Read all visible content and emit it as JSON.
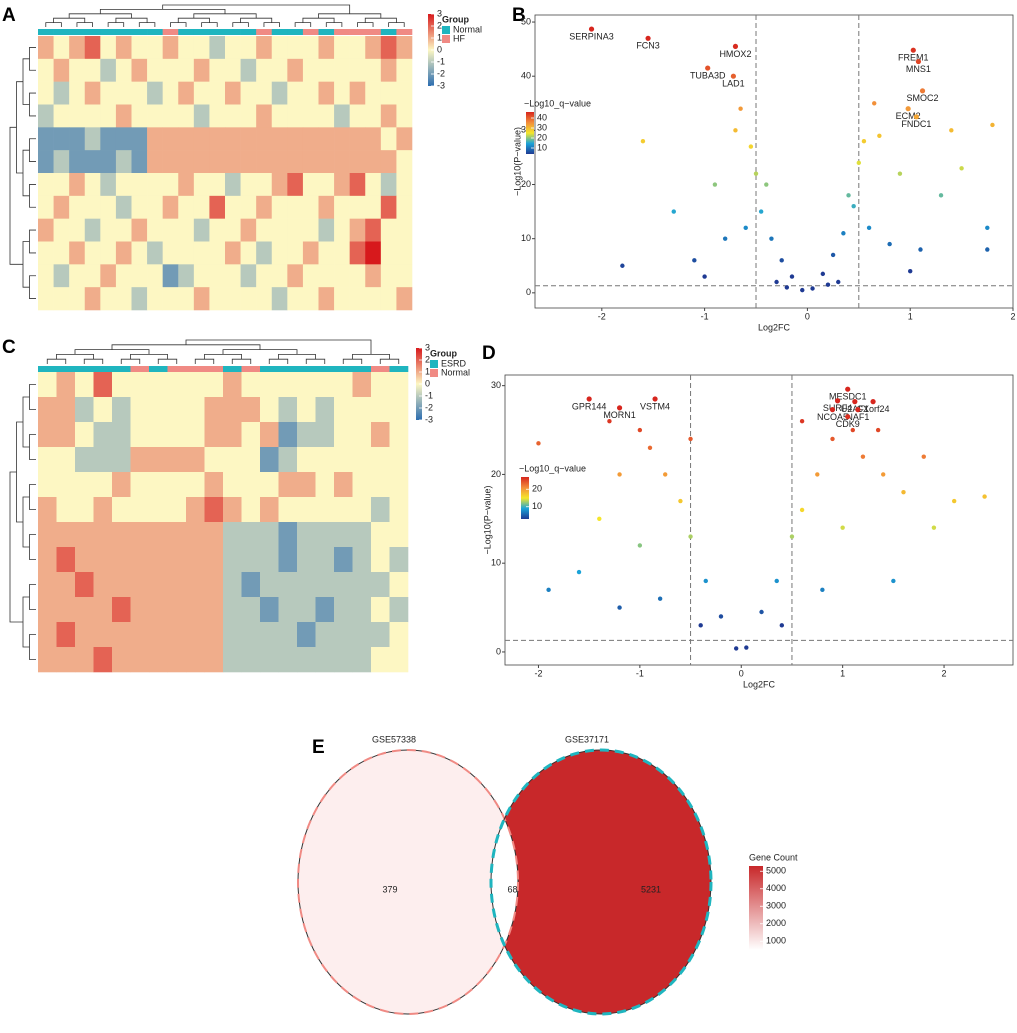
{
  "chart_data": [
    {
      "type": "heatmap",
      "panel": "A",
      "legend_title": "Group",
      "groups": [
        {
          "name": "Normal",
          "color": "#1fb5bf"
        },
        {
          "name": "HF",
          "color": "#f08a84"
        }
      ],
      "column_groups": [
        "Normal",
        "Normal",
        "Normal",
        "Normal",
        "Normal",
        "Normal",
        "Normal",
        "Normal",
        "HF",
        "Normal",
        "Normal",
        "Normal",
        "Normal",
        "Normal",
        "HF",
        "Normal",
        "Normal",
        "HF",
        "Normal",
        "HF",
        "HF",
        "HF",
        "Normal",
        "HF"
      ],
      "values": [
        [
          1,
          0,
          1,
          2,
          0,
          1,
          0,
          0,
          1,
          0,
          0,
          -1,
          0,
          0,
          1,
          0,
          0,
          0,
          1,
          0,
          0,
          1,
          2,
          1
        ],
        [
          0,
          1,
          0,
          0,
          -1,
          0,
          1,
          0,
          0,
          0,
          1,
          0,
          0,
          -1,
          0,
          0,
          1,
          0,
          0,
          0,
          0,
          0,
          1,
          0
        ],
        [
          0,
          -1,
          0,
          1,
          0,
          0,
          0,
          -1,
          0,
          1,
          0,
          0,
          1,
          0,
          0,
          -1,
          0,
          0,
          1,
          0,
          1,
          0,
          0,
          0
        ],
        [
          -1,
          0,
          0,
          0,
          0,
          1,
          0,
          0,
          0,
          0,
          -1,
          0,
          0,
          0,
          1,
          0,
          0,
          0,
          0,
          -1,
          0,
          0,
          1,
          0
        ],
        [
          -2,
          -2,
          -2,
          -1,
          -2,
          -2,
          -2,
          1,
          1,
          1,
          1,
          1,
          1,
          1,
          1,
          1,
          1,
          1,
          1,
          1,
          1,
          1,
          0,
          1
        ],
        [
          -2,
          -1,
          -2,
          -2,
          -2,
          -1,
          -2,
          1,
          1,
          1,
          1,
          1,
          1,
          1,
          1,
          1,
          1,
          1,
          1,
          1,
          1,
          1,
          1,
          0
        ],
        [
          0,
          0,
          1,
          0,
          -1,
          0,
          0,
          0,
          0,
          1,
          0,
          0,
          -1,
          0,
          0,
          1,
          2,
          0,
          0,
          1,
          2,
          0,
          -1,
          0
        ],
        [
          0,
          1,
          0,
          0,
          0,
          -1,
          0,
          0,
          1,
          0,
          0,
          2,
          0,
          0,
          1,
          0,
          0,
          0,
          1,
          0,
          0,
          0,
          2,
          0
        ],
        [
          1,
          0,
          0,
          -1,
          0,
          0,
          1,
          0,
          0,
          0,
          -1,
          0,
          0,
          1,
          0,
          0,
          0,
          0,
          -1,
          0,
          1,
          2,
          0,
          0
        ],
        [
          0,
          0,
          1,
          0,
          0,
          1,
          0,
          -1,
          0,
          0,
          0,
          0,
          1,
          0,
          -1,
          0,
          0,
          1,
          0,
          0,
          2,
          3,
          0,
          0
        ],
        [
          0,
          -1,
          0,
          0,
          1,
          0,
          0,
          0,
          -2,
          -1,
          0,
          0,
          0,
          -1,
          0,
          0,
          1,
          0,
          0,
          0,
          0,
          1,
          0,
          0
        ],
        [
          0,
          0,
          0,
          1,
          0,
          0,
          -1,
          0,
          0,
          0,
          1,
          0,
          0,
          0,
          0,
          -1,
          0,
          0,
          1,
          0,
          0,
          0,
          0,
          1
        ]
      ],
      "color_scale": {
        "lim": [
          -3,
          3
        ],
        "colors": [
          "#2c6db0",
          "#fdf7c3",
          "#d7191c"
        ]
      },
      "colorbar_ticks": [
        3,
        2,
        1,
        0,
        -1,
        -2,
        -3
      ]
    },
    {
      "type": "scatter",
      "panel": "B",
      "xlabel": "Log2FC",
      "ylabel": "−Log10(P−value)",
      "xlim": [
        -2.65,
        2
      ],
      "ylim": [
        -2.8,
        51.3
      ],
      "xticks": [
        -2,
        -1,
        0,
        1,
        2
      ],
      "yticks": [
        0,
        10,
        20,
        30,
        40,
        50
      ],
      "thresholds": {
        "x": [
          -0.5,
          0.5
        ],
        "y": [
          1.3
        ]
      },
      "x": [
        -0.05,
        0.05,
        -0.15,
        0.15,
        -0.25,
        0.25,
        -0.35,
        0.35,
        -0.45,
        0.45,
        -0.5,
        0.5,
        -0.55,
        0.55,
        -0.6,
        0.6,
        -0.8,
        0.8,
        -0.9,
        0.9,
        -1.1,
        1.1,
        -1.3,
        1.3,
        -1.6,
        1.4,
        -1.8,
        1.5,
        1.75,
        1.75,
        -0.3,
        0.3,
        -0.7,
        0.7,
        -0.4,
        0.4,
        -1.0,
        1.0,
        -0.2,
        0.2,
        1.8,
        -0.65,
        0.65
      ],
      "y": [
        0.5,
        0.8,
        3,
        3.5,
        6,
        7,
        10,
        11,
        15,
        16,
        22,
        24,
        27,
        28,
        12,
        12,
        10,
        9,
        20,
        22,
        6,
        8,
        15,
        18,
        28,
        30,
        5,
        23,
        12,
        8,
        2,
        2,
        30,
        29,
        20,
        18,
        3,
        4,
        1,
        1.5,
        31,
        34,
        35
      ],
      "labels": [
        {
          "name": "SERPINA3",
          "x": -2.1,
          "y": 48.7
        },
        {
          "name": "FCN3",
          "x": -1.55,
          "y": 47
        },
        {
          "name": "HMOX2",
          "x": -0.7,
          "y": 45.5
        },
        {
          "name": "TUBA3D",
          "x": -0.97,
          "y": 41.5
        },
        {
          "name": "LAD1",
          "x": -0.72,
          "y": 40
        },
        {
          "name": "FREM1",
          "x": 1.03,
          "y": 44.8
        },
        {
          "name": "MNS1",
          "x": 1.08,
          "y": 42.7
        },
        {
          "name": "SMOC2",
          "x": 1.12,
          "y": 37.3
        },
        {
          "name": "ECM2",
          "x": 0.98,
          "y": 34
        },
        {
          "name": "FNDC1",
          "x": 1.06,
          "y": 32.5
        }
      ],
      "color_title": "−Log10_q−value",
      "color_scale": {
        "lim": [
          4,
          46
        ],
        "colors": [
          "#1f3a93",
          "#1ba3d8",
          "#f5e62a",
          "#f28c3a",
          "#d7261e"
        ]
      },
      "colorbar_ticks": [
        10,
        20,
        30,
        40
      ]
    },
    {
      "type": "heatmap",
      "panel": "C",
      "legend_title": "Group",
      "groups": [
        {
          "name": "ESRD",
          "color": "#1fb5bf"
        },
        {
          "name": "Normal",
          "color": "#f08a84"
        }
      ],
      "column_groups": [
        "ESRD",
        "ESRD",
        "ESRD",
        "ESRD",
        "ESRD",
        "Normal",
        "ESRD",
        "Normal",
        "Normal",
        "Normal",
        "ESRD",
        "Normal",
        "ESRD",
        "ESRD",
        "ESRD",
        "ESRD",
        "ESRD",
        "ESRD",
        "Normal",
        "ESRD"
      ],
      "values": [
        [
          0,
          1,
          0,
          2,
          0,
          0,
          0,
          0,
          0,
          0,
          1,
          0,
          0,
          0,
          0,
          0,
          0,
          1,
          0,
          0
        ],
        [
          1,
          1,
          -1,
          0,
          -1,
          0,
          0,
          0,
          0,
          1,
          1,
          1,
          0,
          -1,
          0,
          -1,
          0,
          0,
          0,
          0
        ],
        [
          1,
          1,
          0,
          -1,
          -1,
          0,
          0,
          0,
          0,
          1,
          1,
          0,
          1,
          -2,
          -1,
          -1,
          0,
          0,
          1,
          0
        ],
        [
          0,
          0,
          -1,
          -1,
          -1,
          1,
          1,
          1,
          1,
          0,
          0,
          0,
          -2,
          -1,
          0,
          0,
          0,
          0,
          0,
          0
        ],
        [
          0,
          0,
          0,
          0,
          1,
          0,
          0,
          0,
          0,
          1,
          0,
          0,
          0,
          1,
          1,
          0,
          1,
          0,
          0,
          0
        ],
        [
          1,
          0,
          0,
          1,
          0,
          0,
          0,
          0,
          1,
          2,
          1,
          0,
          1,
          0,
          0,
          0,
          0,
          0,
          -1,
          0
        ],
        [
          1,
          1,
          1,
          1,
          1,
          1,
          1,
          1,
          1,
          1,
          -1,
          -1,
          -1,
          -2,
          -1,
          -1,
          -1,
          -1,
          0,
          0
        ],
        [
          1,
          2,
          1,
          1,
          1,
          1,
          1,
          1,
          1,
          1,
          -1,
          -1,
          -1,
          -2,
          -1,
          -1,
          -2,
          -1,
          0,
          -1
        ],
        [
          1,
          1,
          2,
          1,
          1,
          1,
          1,
          1,
          1,
          1,
          -1,
          -2,
          -1,
          -1,
          -1,
          -1,
          -1,
          -1,
          -1,
          0
        ],
        [
          1,
          1,
          1,
          1,
          2,
          1,
          1,
          1,
          1,
          1,
          -1,
          -1,
          -2,
          -1,
          -1,
          -2,
          -1,
          -1,
          0,
          -1
        ],
        [
          1,
          2,
          1,
          1,
          1,
          1,
          1,
          1,
          1,
          1,
          -1,
          -1,
          -1,
          -1,
          -2,
          -1,
          -1,
          -1,
          -1,
          0
        ],
        [
          1,
          1,
          1,
          2,
          1,
          1,
          1,
          1,
          1,
          1,
          -1,
          -1,
          -1,
          -1,
          -1,
          -1,
          -1,
          -1,
          0,
          0
        ]
      ],
      "color_scale": {
        "lim": [
          -3,
          3
        ],
        "colors": [
          "#2c6db0",
          "#fdf7c3",
          "#d7191c"
        ]
      },
      "colorbar_ticks": [
        3,
        2,
        1,
        0,
        -1,
        -2,
        -3
      ]
    },
    {
      "type": "scatter",
      "panel": "D",
      "xlabel": "Log2FC",
      "ylabel": "−Log10(P−value)",
      "xlim": [
        -2.33,
        2.68
      ],
      "ylim": [
        -1.47,
        31.2
      ],
      "xticks": [
        -2,
        -1,
        0,
        1,
        2
      ],
      "yticks": [
        0,
        10,
        20,
        30
      ],
      "thresholds": {
        "x": [
          -0.5,
          0.5
        ],
        "y": [
          1.3
        ]
      },
      "x": [
        -0.05,
        0.05,
        -0.2,
        0.2,
        -0.35,
        0.35,
        -0.5,
        0.5,
        -0.6,
        0.6,
        -0.75,
        0.75,
        -0.9,
        0.9,
        -1.0,
        1.1,
        -1.2,
        1.2,
        -1.4,
        1.4,
        -1.6,
        1.6,
        -1.9,
        1.8,
        2.1,
        2.4,
        -2.0,
        -1.0,
        1.0,
        -0.8,
        0.8,
        -0.4,
        0.4,
        1.5,
        -1.2,
        1.9,
        -0.5,
        0.6,
        -1.3,
        1.35
      ],
      "y": [
        0.4,
        0.5,
        4,
        4.5,
        8,
        8,
        13,
        13,
        17,
        16,
        20,
        20,
        23,
        24,
        25,
        25,
        20,
        22,
        15,
        20,
        9,
        18,
        7,
        22,
        17,
        17.5,
        23.5,
        12,
        14,
        6,
        7,
        3,
        3,
        8,
        5,
        14,
        24,
        26,
        26,
        25
      ],
      "labels": [
        {
          "name": "GPR144",
          "x": -1.5,
          "y": 28.5
        },
        {
          "name": "MORN1",
          "x": -1.2,
          "y": 27.5
        },
        {
          "name": "VSTM4",
          "x": -0.85,
          "y": 28.5
        },
        {
          "name": "MESDC1",
          "x": 1.05,
          "y": 29.6
        },
        {
          "name": "SURF4",
          "x": 0.95,
          "y": 28.3
        },
        {
          "name": "U2AF1",
          "x": 1.12,
          "y": 28.2
        },
        {
          "name": "CXorf24",
          "x": 1.3,
          "y": 28.2
        },
        {
          "name": "NCOA5",
          "x": 0.9,
          "y": 27.3
        },
        {
          "name": "NAF1",
          "x": 1.15,
          "y": 27.3
        },
        {
          "name": "CDK9",
          "x": 1.05,
          "y": 26.5
        }
      ],
      "color_title": "−Log10_q−value",
      "color_scale": {
        "lim": [
          3,
          27
        ],
        "colors": [
          "#1f3a93",
          "#1ba3d8",
          "#f5e62a",
          "#f28c3a",
          "#d7261e"
        ]
      },
      "colorbar_ticks": [
        10,
        20
      ]
    },
    {
      "type": "venn",
      "panel": "E",
      "sets": [
        {
          "name": "GSE57338",
          "outline": "#f08a84"
        },
        {
          "name": "GSE37171",
          "outline": "#1fb5bf"
        }
      ],
      "counts": [
        379,
        68,
        5231
      ],
      "region_colors": [
        "#fdeeee",
        "#ffffff",
        "#c8282a"
      ],
      "legend_title": "Gene Count",
      "color_scale": {
        "lim": [
          500,
          5300
        ],
        "colors": [
          "#ffffff",
          "#c8282a"
        ]
      },
      "colorbar_ticks": [
        5000,
        4000,
        3000,
        2000,
        1000
      ]
    }
  ]
}
